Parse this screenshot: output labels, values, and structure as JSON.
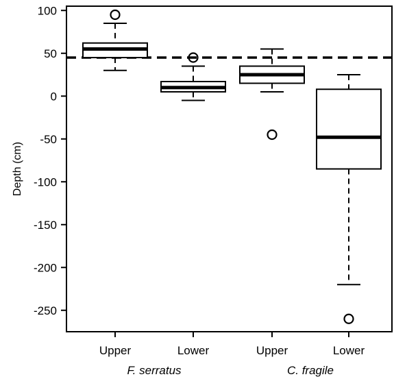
{
  "chart_data": {
    "type": "box",
    "ylabel": "Depth (cm)",
    "xlabel": "",
    "title": "",
    "ylim": [
      -275,
      105
    ],
    "y_ticks": [
      100,
      50,
      0,
      -50,
      -100,
      -150,
      -200,
      -250
    ],
    "y_tick_labels": [
      "100",
      "50",
      "0",
      "-50",
      "-100",
      "-150",
      "-200",
      "-250"
    ],
    "categories": [
      "Upper",
      "Lower",
      "Upper",
      "Lower"
    ],
    "groups": [
      {
        "name": "F. serratus",
        "categories": [
          0,
          1
        ]
      },
      {
        "name": "C. fragile",
        "categories": [
          2,
          3
        ]
      }
    ],
    "boxes": [
      {
        "category": "Upper",
        "group": "F. serratus",
        "whisker_low": 30,
        "q1": 45,
        "median": 55,
        "q3": 62,
        "whisker_high": 85,
        "outliers": [
          95
        ]
      },
      {
        "category": "Lower",
        "group": "F. serratus",
        "whisker_low": -5,
        "q1": 5,
        "median": 10,
        "q3": 17,
        "whisker_high": 35,
        "outliers": [
          45
        ]
      },
      {
        "category": "Upper",
        "group": "C. fragile",
        "whisker_low": 5,
        "q1": 15,
        "median": 25,
        "q3": 35,
        "whisker_high": 55,
        "outliers": [
          -45
        ]
      },
      {
        "category": "Lower",
        "group": "C. fragile",
        "whisker_low": -220,
        "q1": -85,
        "median": -48,
        "q3": 8,
        "whisker_high": 25,
        "outliers": [
          -260
        ]
      }
    ],
    "reference_line": {
      "y": 45,
      "style": "dashed"
    },
    "grid": false,
    "legend": "none"
  }
}
